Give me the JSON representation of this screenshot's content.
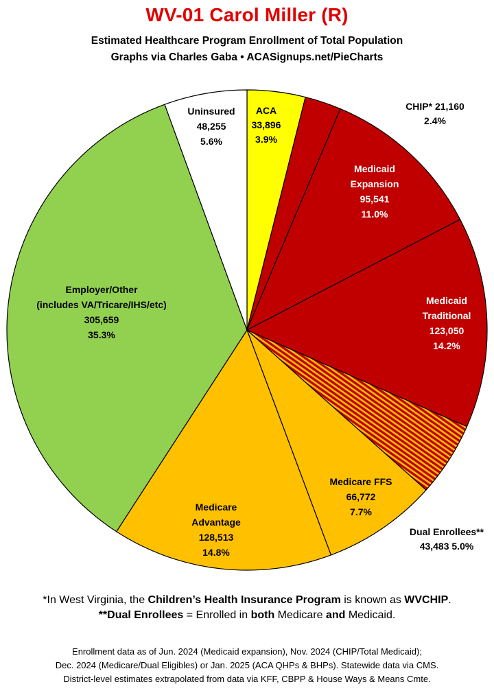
{
  "header": {
    "title": "WV-01 Carol Miller (R)",
    "subtitle1": "Estimated Healthcare Program Enrollment of Total Population",
    "subtitle2": "Graphs via Charles Gaba  •  ACASignups.net/PieCharts"
  },
  "chart_data": {
    "type": "pie",
    "start": "12 o'clock, clockwise",
    "slices": [
      {
        "name": "ACA",
        "value": 33896,
        "value_text": "33,896",
        "pct": 3.9,
        "pct_text": "3.9%",
        "color": "#ffff00"
      },
      {
        "name": "CHIP*",
        "value": 21160,
        "value_text": "21,160",
        "pct": 2.4,
        "pct_text": "2.4%",
        "color": "#c00000"
      },
      {
        "name": "Medicaid Expansion",
        "value": 95541,
        "value_text": "95,541",
        "pct": 11.0,
        "pct_text": "11.0%",
        "color": "#c00000"
      },
      {
        "name": "Medicaid Traditional",
        "value": 123050,
        "value_text": "123,050",
        "pct": 14.2,
        "pct_text": "14.2%",
        "color": "#c00000"
      },
      {
        "name": "Dual Enrollees**",
        "value": 43483,
        "value_text": "43,483",
        "pct": 5.0,
        "pct_text": "5.0%",
        "color": "#c00000",
        "pattern": "stripes",
        "stripe_color": "#ffc000"
      },
      {
        "name": "Medicare FFS",
        "value": 66772,
        "value_text": "66,772",
        "pct": 7.7,
        "pct_text": "7.7%",
        "color": "#ffc000"
      },
      {
        "name": "Medicare Advantage",
        "value": 128513,
        "value_text": "128,513",
        "pct": 14.8,
        "pct_text": "14.8%",
        "color": "#ffc000"
      },
      {
        "name": "Employer/Other (includes VA/Tricare/IHS/etc)",
        "value": 305659,
        "value_text": "305,659",
        "pct": 35.3,
        "pct_text": "35.3%",
        "color": "#92d050"
      },
      {
        "name": "Uninsured",
        "value": 48255,
        "value_text": "48,255",
        "pct": 5.6,
        "pct_text": "5.6%",
        "color": "#ffffff"
      }
    ],
    "labels": {
      "aca": [
        "ACA",
        "33,896",
        "3.9%"
      ],
      "chip": [
        "CHIP* 21,160",
        "2.4%"
      ],
      "med_exp": [
        "Medicaid",
        "Expansion",
        "95,541",
        "11.0%"
      ],
      "med_trad": [
        "Medicaid",
        "Traditional",
        "123,050",
        "14.2%"
      ],
      "dual": [
        "Dual Enrollees**",
        "43,483 5.0%"
      ],
      "ffs": [
        "Medicare FFS",
        "66,772",
        "7.7%"
      ],
      "adv": [
        "Medicare",
        "Advantage",
        "128,513",
        "14.8%"
      ],
      "emp": [
        "Employer/Other",
        "(includes VA/Tricare/IHS/etc)",
        "305,659",
        "35.3%"
      ],
      "unins": [
        "Uninsured",
        "48,255",
        "5.6%"
      ]
    }
  },
  "notes": {
    "line1": [
      "*In West Virginia, the ",
      "Children’s Health Insurance Program",
      " is known as ",
      "WVCHIP",
      "."
    ],
    "line2": [
      "**Dual Enrollees",
      " = Enrolled in ",
      "both",
      " Medicare ",
      "and",
      " Medicaid."
    ]
  },
  "footer": {
    "line1": "Enrollment data as of Jun. 2024 (Medicaid expansion), Nov. 2024 (CHIP/Total Medicaid);",
    "line2": "Dec. 2024 (Medicare/Dual Eligibles) or Jan. 2025 (ACA QHPs & BHPs). Statewide data via CMS.",
    "line3": "District-level estimates extrapolated from data via KFF, CBPP & House Ways & Means Cmte."
  }
}
